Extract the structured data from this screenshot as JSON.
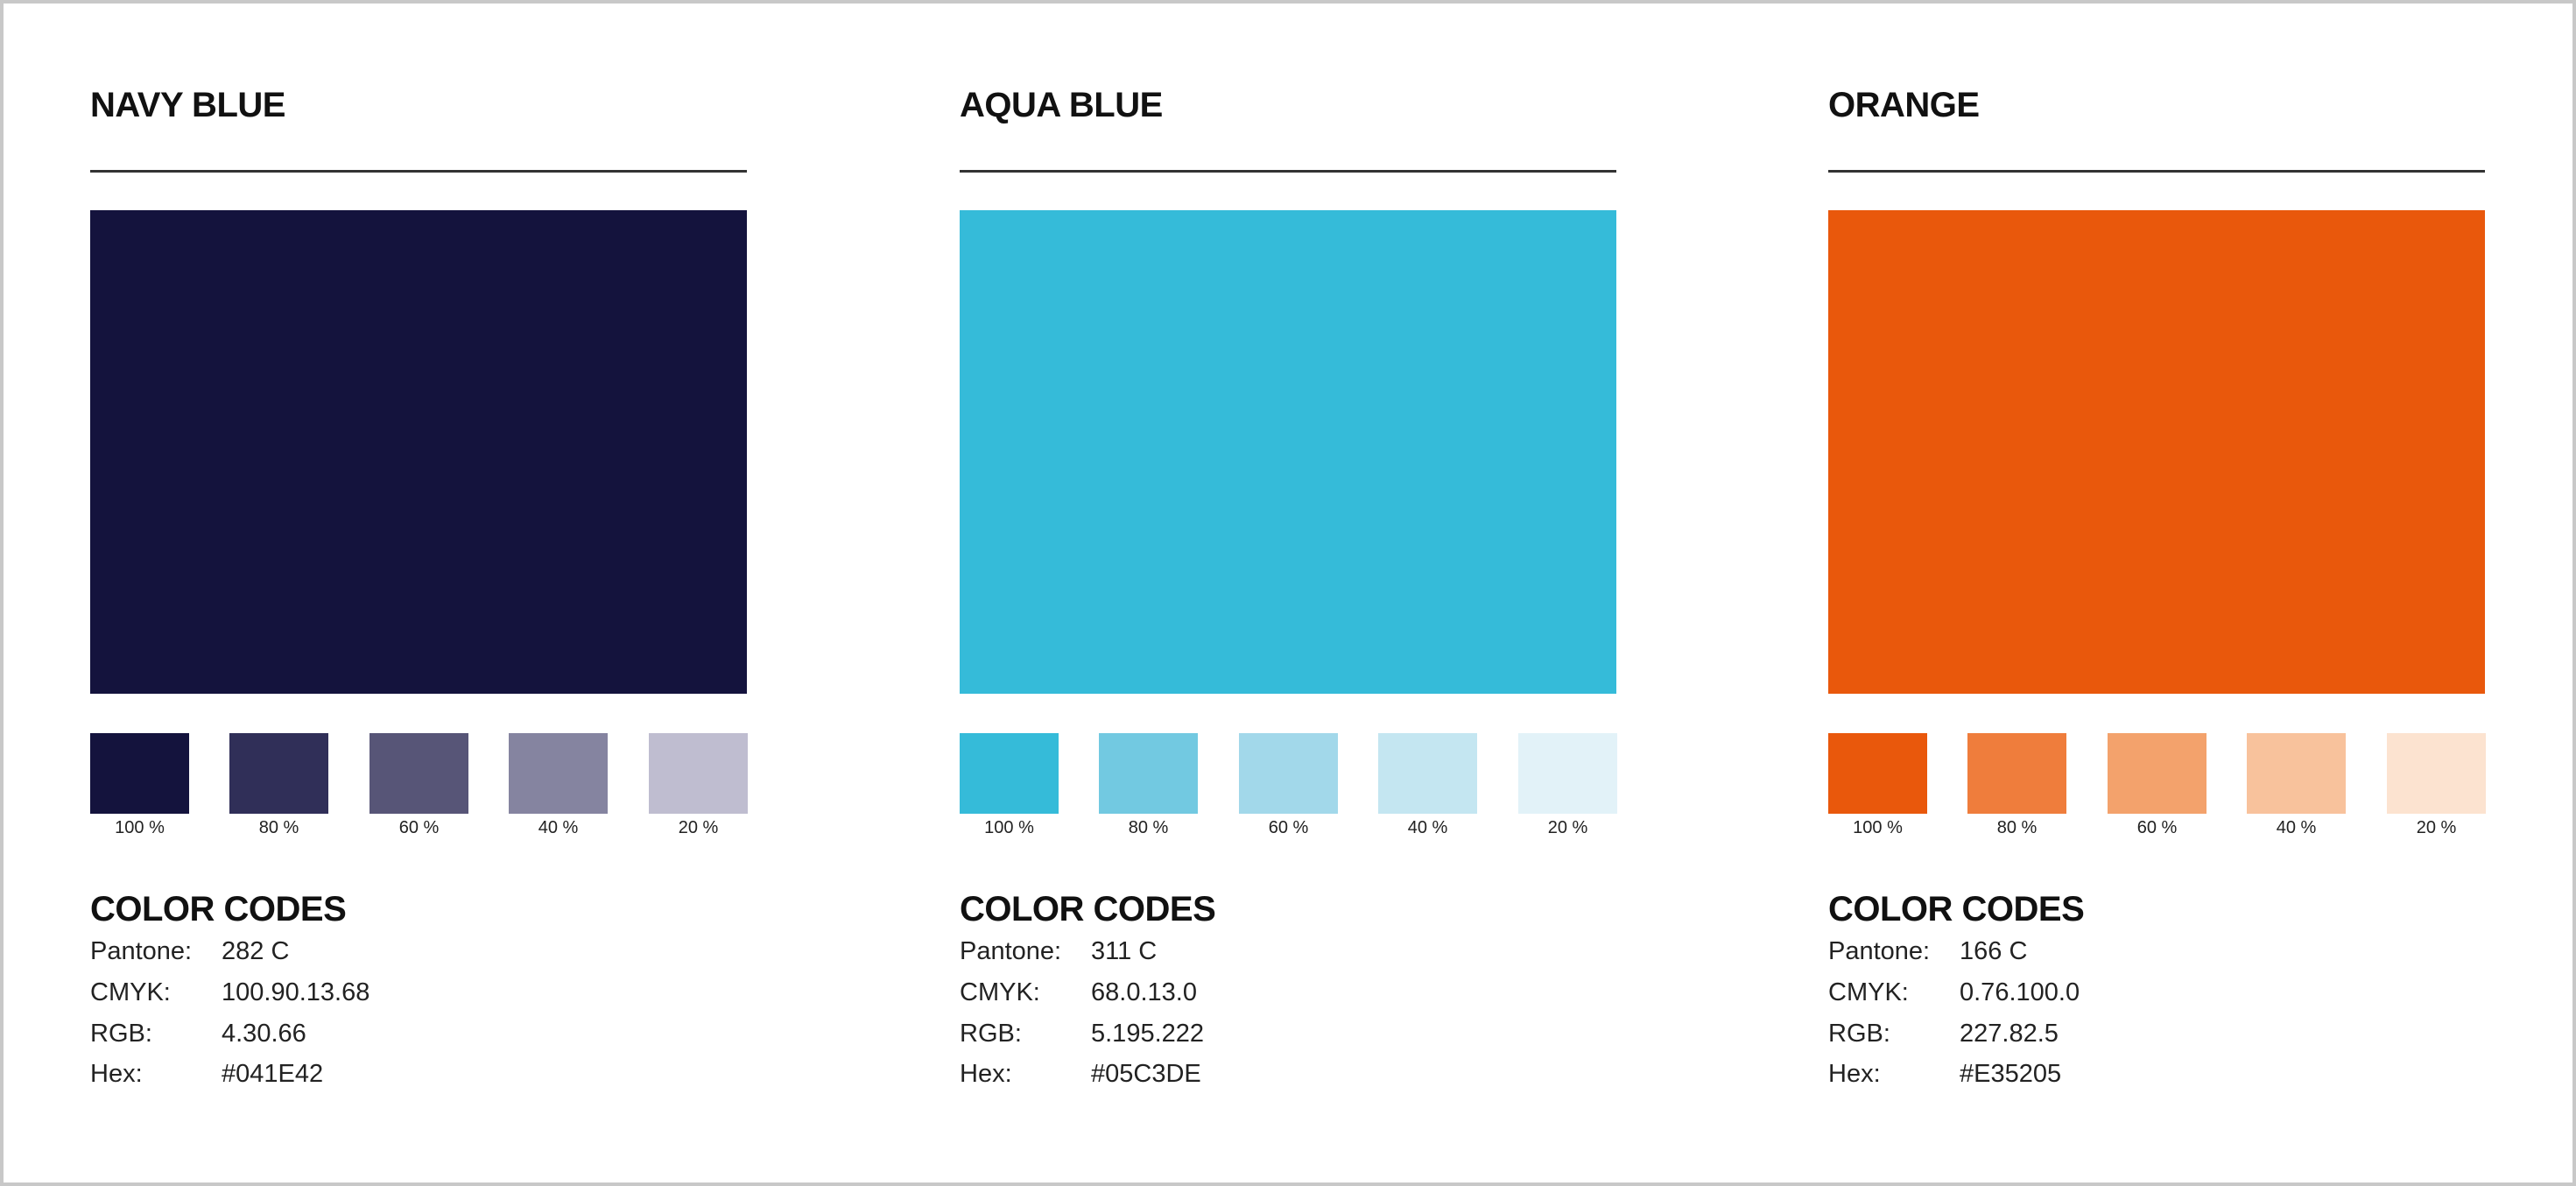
{
  "codes_heading": "COLOR CODES",
  "field_labels": {
    "pantone": "Pantone:",
    "cmyk": "CMYK:",
    "rgb": "RGB:",
    "hex": "Hex:"
  },
  "tint_labels": [
    "100 %",
    "80 %",
    "60 %",
    "40 %",
    "20 %"
  ],
  "colors": [
    {
      "name": "NAVY BLUE",
      "pantone": "282 C",
      "cmyk": "100.90.13.68",
      "rgb": "4.30.66",
      "hex": "#041E42",
      "swatch": "#14133d",
      "tints": [
        "#14133d",
        "#302f58",
        "#575577",
        "#8584a0",
        "#bfbdd0"
      ]
    },
    {
      "name": "AQUA BLUE",
      "pantone": "311 C",
      "cmyk": "68.0.13.0",
      "rgb": "5.195.222",
      "hex": "#05C3DE",
      "swatch": "#35bbd9",
      "tints": [
        "#35bbd9",
        "#72c9e1",
        "#a2d8ea",
        "#c4e6f1",
        "#e2f2f8"
      ]
    },
    {
      "name": "ORANGE",
      "pantone": "166 C",
      "cmyk": "0.76.100.0",
      "rgb": "227.82.5",
      "hex": "#E35205",
      "swatch": "#e9580c",
      "tints": [
        "#e9580c",
        "#ef7d3c",
        "#f3a26c",
        "#f8c29c",
        "#fce3d0"
      ]
    }
  ]
}
